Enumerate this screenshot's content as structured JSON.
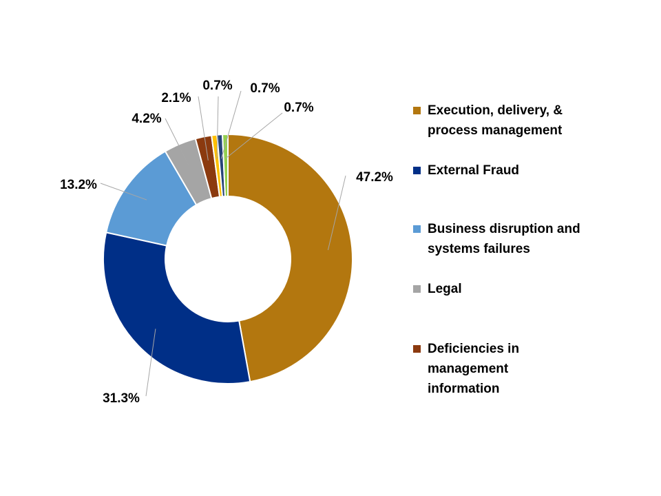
{
  "chart_data": {
    "type": "donut",
    "slices": [
      {
        "name": "Execution, delivery, & process management",
        "value": 47.2,
        "label": "47.2%",
        "color": "#B3770F"
      },
      {
        "name": "External Fraud",
        "value": 31.3,
        "label": "31.3%",
        "color": "#002F87"
      },
      {
        "name": "Business disruption and systems failures",
        "value": 13.2,
        "label": "13.2%",
        "color": "#5B9BD5"
      },
      {
        "name": "Legal",
        "value": 4.2,
        "label": "4.2%",
        "color": "#A5A5A5"
      },
      {
        "name": "Deficiencies in management information",
        "value": 2.1,
        "label": "2.1%",
        "color": "#8B3A0F"
      },
      {
        "name": "",
        "value": 0.7,
        "label": "0.7%",
        "color": "#FFC000"
      },
      {
        "name": "",
        "value": 0.7,
        "label": "0.7%",
        "color": "#264478"
      },
      {
        "name": "",
        "value": 0.7,
        "label": "0.7%",
        "color": "#92D050"
      }
    ],
    "legend": {
      "placement": "right",
      "entries": [
        {
          "label": "Execution, delivery, &\nprocess management",
          "color": "#B3770F"
        },
        {
          "label": "External Fraud",
          "color": "#002F87"
        },
        {
          "label": "Business disruption and\nsystems failures",
          "color": "#5B9BD5"
        },
        {
          "label": "Legal",
          "color": "#A5A5A5"
        },
        {
          "label": "Deficiencies in\nmanagement\ninformation",
          "color": "#8B3A0F"
        }
      ]
    }
  }
}
